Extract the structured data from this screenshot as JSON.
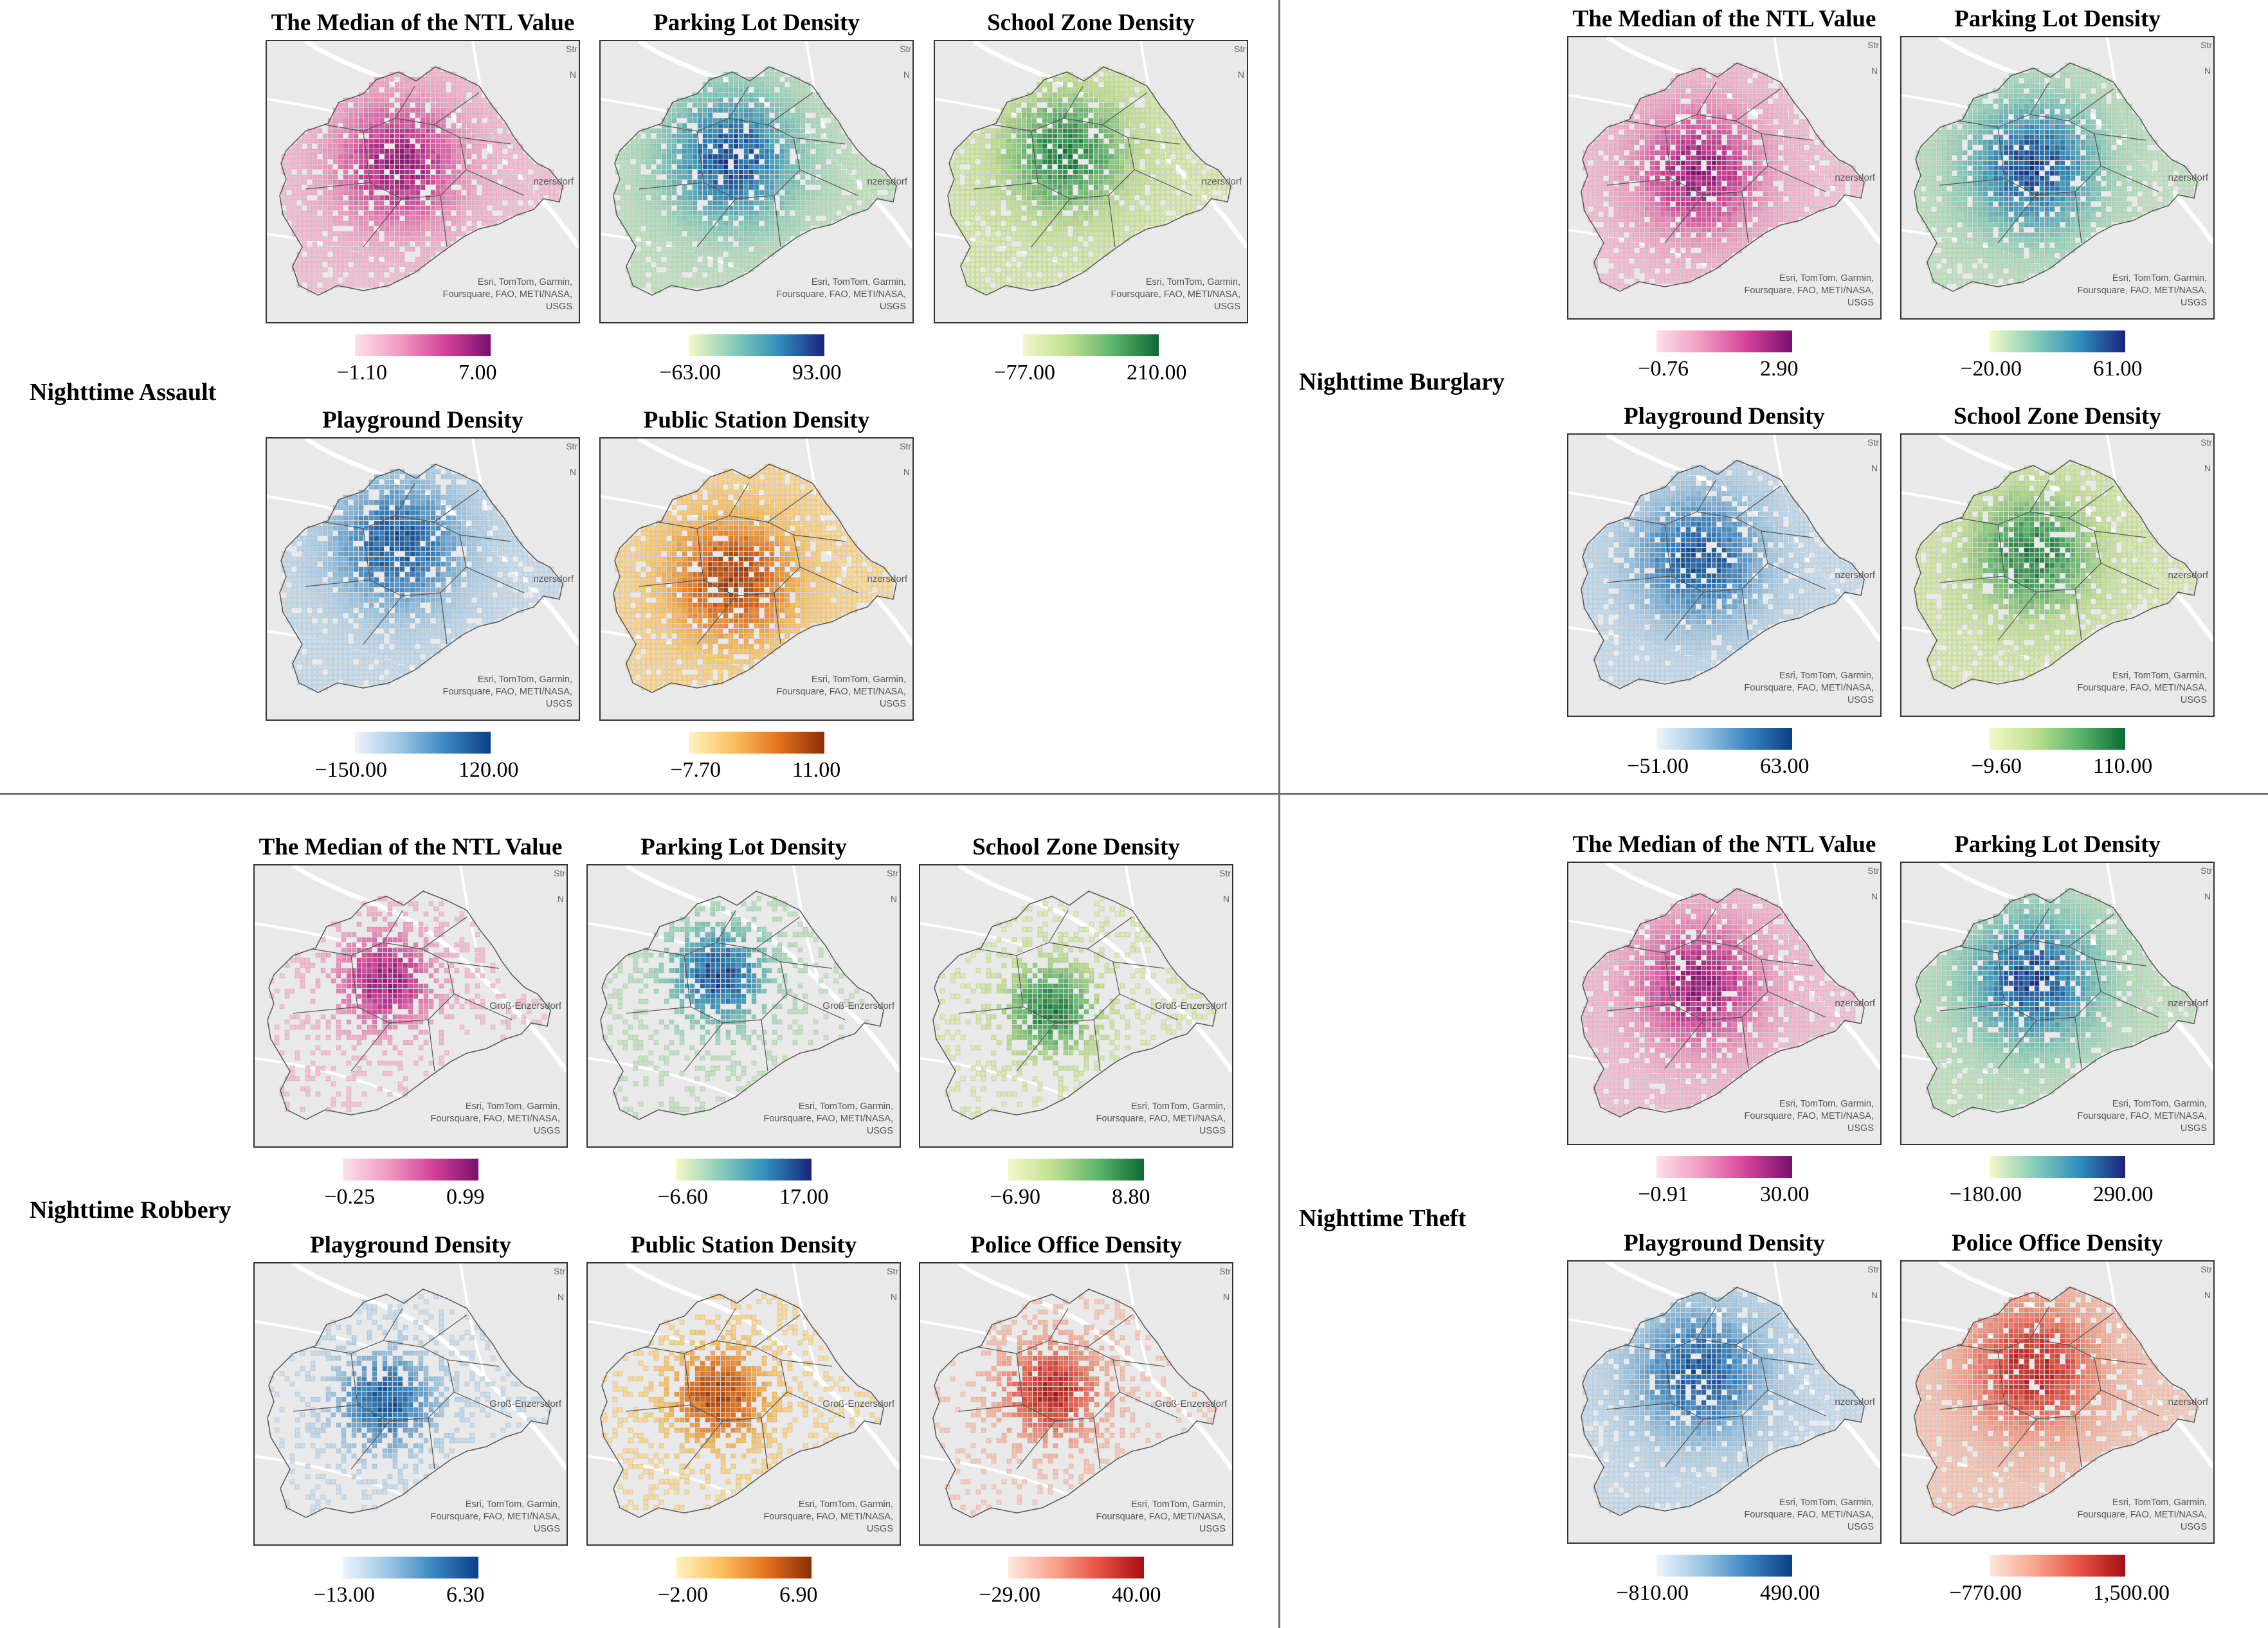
{
  "groups": {
    "assault": {
      "label": "Nighttime Assault",
      "panels": [
        {
          "title": "The Median of the NTL Value",
          "min": "−1.10",
          "max": "7.00",
          "ramp": "pink",
          "credit": [
            "Esri, TomTom, Garmin,",
            "Foursquare, FAO, METI/NASA,",
            "USGS"
          ],
          "place": "nzersdorf",
          "str": "Str",
          "n": "N"
        },
        {
          "title": "Parking Lot Density",
          "min": "−63.00",
          "max": "93.00",
          "ramp": "teal",
          "credit": [
            "Esri, TomTom, Garmin,",
            "Foursquare, FAO, METI/NASA,",
            "USGS"
          ],
          "place": "nzersdorf",
          "str": "Str",
          "n": "N"
        },
        {
          "title": "School Zone Density",
          "min": "−77.00",
          "max": "210.00",
          "ramp": "green",
          "credit": [
            "Esri, TomTom, Garmin,",
            "Foursquare, FAO, METI/NASA,",
            "USGS"
          ],
          "place": "nzersdorf",
          "str": "Str",
          "n": "N"
        },
        {
          "title": "Playground Density",
          "min": "−150.00",
          "max": "120.00",
          "ramp": "blue",
          "credit": [
            "Esri, TomTom, Garmin,",
            "Foursquare, FAO, METI/NASA,",
            "USGS"
          ],
          "place": "nzersdorf",
          "str": "Str",
          "n": "N"
        },
        {
          "title": "Public Station Density",
          "min": "−7.70",
          "max": "11.00",
          "ramp": "orange",
          "credit": [
            "Esri, TomTom, Garmin,",
            "Foursquare, FAO, METI/NASA,",
            "USGS"
          ],
          "place": "nzersdorf",
          "str": "Str",
          "n": "N"
        }
      ]
    },
    "burglary": {
      "label": "Nighttime Burglary",
      "panels": [
        {
          "title": "The Median of the NTL Value",
          "min": "−0.76",
          "max": "2.90",
          "ramp": "pink",
          "credit": [
            "Esri, TomTom, Garmin,",
            "Foursquare, FAO, METI/NASA,",
            "USGS"
          ],
          "place": "nzersdorf",
          "str": "Str",
          "n": "N"
        },
        {
          "title": "Parking Lot Density",
          "min": "−20.00",
          "max": "61.00",
          "ramp": "teal",
          "credit": [
            "Esri, TomTom, Garmin,",
            "Foursquare, FAO, METI/NASA,",
            "USGS"
          ],
          "place": "nzersdorf",
          "str": "Str",
          "n": "N"
        },
        {
          "title": "Playground Density",
          "min": "−51.00",
          "max": "63.00",
          "ramp": "blue",
          "credit": [
            "Esri, TomTom, Garmin,",
            "Foursquare, FAO, METI/NASA,",
            "USGS"
          ],
          "place": "nzersdorf",
          "str": "Str",
          "n": "N"
        },
        {
          "title": "School Zone Density",
          "min": "−9.60",
          "max": "110.00",
          "ramp": "green",
          "credit": [
            "Esri, TomTom, Garmin,",
            "Foursquare, FAO, METI/NASA,",
            "USGS"
          ],
          "place": "nzersdorf",
          "str": "Str",
          "n": "N"
        }
      ]
    },
    "robbery": {
      "label": "Nighttime Robbery",
      "panels": [
        {
          "title": "The Median of the NTL Value",
          "min": "−0.25",
          "max": "0.99",
          "ramp": "pink",
          "credit": [
            "Esri, TomTom, Garmin,",
            "Foursquare, FAO, METI/NASA,",
            "USGS"
          ],
          "place": "Groß-Enzersdorf",
          "str": "Str",
          "n": "N"
        },
        {
          "title": "Parking Lot Density",
          "min": "−6.60",
          "max": "17.00",
          "ramp": "teal",
          "credit": [
            "Esri, TomTom, Garmin,",
            "Foursquare, FAO, METI/NASA,",
            "USGS"
          ],
          "place": "Groß-Enzersdorf",
          "str": "Str",
          "n": "N"
        },
        {
          "title": "School Zone Density",
          "min": "−6.90",
          "max": "8.80",
          "ramp": "green",
          "credit": [
            "Esri, TomTom, Garmin,",
            "Foursquare, FAO, METI/NASA,",
            "USGS"
          ],
          "place": "Groß-Enzersdorf",
          "str": "Str",
          "n": "N"
        },
        {
          "title": "Playground Density",
          "min": "−13.00",
          "max": "6.30",
          "ramp": "blue",
          "credit": [
            "Esri, TomTom, Garmin,",
            "Foursquare, FAO, METI/NASA,",
            "USGS"
          ],
          "place": "Groß-Enzersdorf",
          "str": "Str",
          "n": "N"
        },
        {
          "title": "Public Station Density",
          "min": "−2.00",
          "max": "6.90",
          "ramp": "orange",
          "credit": [
            "Esri, TomTom, Garmin,",
            "Foursquare, FAO, METI/NASA,",
            "USGS"
          ],
          "place": "Groß-Enzersdorf",
          "str": "Str",
          "n": "N"
        },
        {
          "title": "Police Office Density",
          "min": "−29.00",
          "max": "40.00",
          "ramp": "red",
          "credit": [
            "Esri, TomTom, Garmin,",
            "Foursquare, FAO, METI/NASA,",
            "USGS"
          ],
          "place": "Groß-Enzersdorf",
          "str": "Str",
          "n": "N"
        }
      ]
    },
    "theft": {
      "label": "Nighttime Theft",
      "panels": [
        {
          "title": "The Median of the NTL Value",
          "min": "−0.91",
          "max": "30.00",
          "ramp": "pink",
          "credit": [
            "Esri, TomTom, Garmin,",
            "Foursquare, FAO, METI/NASA,",
            "USGS"
          ],
          "place": "nzersdorf",
          "str": "Str",
          "n": "N"
        },
        {
          "title": "Parking Lot Density",
          "min": "−180.00",
          "max": "290.00",
          "ramp": "teal",
          "credit": [
            "Esri, TomTom, Garmin,",
            "Foursquare, FAO, METI/NASA,",
            "USGS"
          ],
          "place": "nzersdorf",
          "str": "Str",
          "n": "N"
        },
        {
          "title": "Playground Density",
          "min": "−810.00",
          "max": "490.00",
          "ramp": "blue",
          "credit": [
            "Esri, TomTom, Garmin,",
            "Foursquare, FAO, METI/NASA,",
            "USGS"
          ],
          "place": "nzersdorf",
          "str": "Str",
          "n": "N"
        },
        {
          "title": "Police Office Density",
          "min": "−770.00",
          "max": "1,500.00",
          "ramp": "red",
          "credit": [
            "Esri, TomTom, Garmin,",
            "Foursquare, FAO, METI/NASA,",
            "USGS"
          ],
          "place": "nzersdorf",
          "str": "Str",
          "n": "N"
        }
      ]
    }
  },
  "ramps": {
    "pink": [
      "#fde0ea",
      "#f09ac0",
      "#d4429a",
      "#7a0f6e"
    ],
    "teal": [
      "#f4f9c4",
      "#86cdb9",
      "#2f8ebc",
      "#1a237e"
    ],
    "green": [
      "#f2f7c8",
      "#bfe08f",
      "#5bb46a",
      "#0c6b34"
    ],
    "blue": [
      "#eef4fb",
      "#9cc6e4",
      "#3b87c2",
      "#0b3f86"
    ],
    "orange": [
      "#fff2c2",
      "#fbbf5e",
      "#e4721d",
      "#8c2d04"
    ],
    "red": [
      "#fee8dd",
      "#f7a58d",
      "#e65243",
      "#a50f15"
    ]
  },
  "colors": {
    "basemap": "#e9e9e9",
    "road": "#ffffff",
    "boundary": "#555555",
    "divider": "#6f6f6f"
  }
}
